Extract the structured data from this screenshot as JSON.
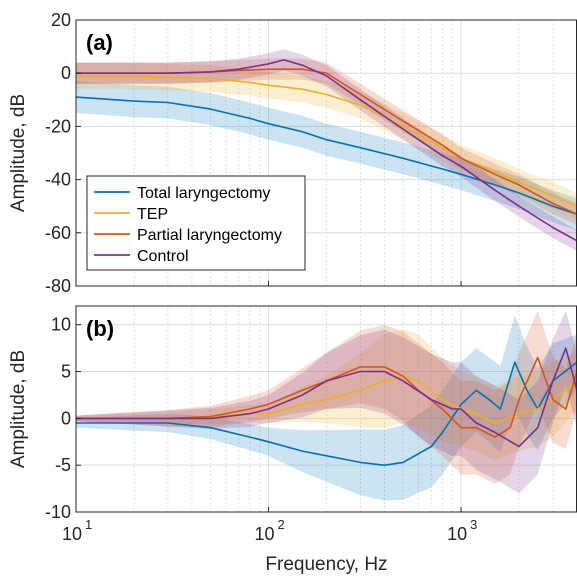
{
  "chart_data": [
    {
      "panel": "(a)",
      "type": "line",
      "xscale": "log",
      "xlim": [
        10,
        4000
      ],
      "ylim": [
        -80,
        20
      ],
      "yticks": [
        20,
        0,
        -20,
        -40,
        -60,
        -80
      ],
      "ylabel": "Amplitude, dB",
      "grid": true,
      "legend": {
        "placement": "bottom-left",
        "entries": [
          "Total laryngectomy",
          "TEP",
          "Partial laryngectomy",
          "Control"
        ]
      },
      "series": [
        {
          "name": "Total laryngectomy",
          "color": "#0072BD",
          "points": [
            [
              10,
              -9
            ],
            [
              20,
              -10.5
            ],
            [
              30,
              -11
            ],
            [
              50,
              -13.5
            ],
            [
              80,
              -17
            ],
            [
              100,
              -19
            ],
            [
              150,
              -22
            ],
            [
              200,
              -25
            ],
            [
              300,
              -28
            ],
            [
              500,
              -32
            ],
            [
              800,
              -36
            ],
            [
              1000,
              -38
            ],
            [
              1500,
              -42
            ],
            [
              2000,
              -45
            ],
            [
              3000,
              -50
            ],
            [
              4000,
              -53
            ]
          ],
          "band": [
            6,
            6
          ]
        },
        {
          "name": "TEP",
          "color": "#EDB120",
          "points": [
            [
              10,
              -1
            ],
            [
              20,
              -1
            ],
            [
              30,
              -1.5
            ],
            [
              50,
              -2
            ],
            [
              80,
              -3.5
            ],
            [
              100,
              -4.5
            ],
            [
              150,
              -6
            ],
            [
              200,
              -8
            ],
            [
              300,
              -12
            ],
            [
              500,
              -20
            ],
            [
              800,
              -28
            ],
            [
              1000,
              -32
            ],
            [
              1500,
              -37
            ],
            [
              2000,
              -41
            ],
            [
              3000,
              -46
            ],
            [
              4000,
              -50
            ]
          ],
          "band": [
            5,
            5
          ]
        },
        {
          "name": "Partial laryngectomy",
          "color": "#D95319",
          "points": [
            [
              10,
              0
            ],
            [
              30,
              0
            ],
            [
              50,
              0.5
            ],
            [
              70,
              1
            ],
            [
              100,
              1.5
            ],
            [
              150,
              1.5
            ],
            [
              200,
              0
            ],
            [
              300,
              -8
            ],
            [
              500,
              -18
            ],
            [
              800,
              -27
            ],
            [
              1000,
              -32
            ],
            [
              1500,
              -38
            ],
            [
              2000,
              -42
            ],
            [
              3000,
              -49
            ],
            [
              4000,
              -53
            ]
          ],
          "band": [
            4,
            4
          ]
        },
        {
          "name": "Control",
          "color": "#7E2F8E",
          "points": [
            [
              10,
              0
            ],
            [
              30,
              0
            ],
            [
              50,
              0.5
            ],
            [
              70,
              1.5
            ],
            [
              100,
              3.5
            ],
            [
              120,
              5
            ],
            [
              150,
              3
            ],
            [
              200,
              -1
            ],
            [
              300,
              -10
            ],
            [
              500,
              -21
            ],
            [
              800,
              -31
            ],
            [
              1000,
              -35
            ],
            [
              1500,
              -44
            ],
            [
              2000,
              -50
            ],
            [
              3000,
              -58
            ],
            [
              4000,
              -63
            ]
          ],
          "band": [
            4,
            4
          ]
        }
      ]
    },
    {
      "panel": "(b)",
      "type": "line",
      "xscale": "log",
      "xlim": [
        10,
        4000
      ],
      "ylim": [
        -10,
        12
      ],
      "yticks": [
        10,
        5,
        0,
        -5,
        -10
      ],
      "xticks": [
        "10",
        "10",
        "10"
      ],
      "xtick_exponents": [
        "1",
        "2",
        "3"
      ],
      "xtick_values": [
        10,
        100,
        1000
      ],
      "xlabel": "Frequency, Hz",
      "ylabel": "Amplitude, dB",
      "grid": true,
      "series": [
        {
          "name": "Total laryngectomy",
          "color": "#0072BD",
          "points": [
            [
              10,
              -0.5
            ],
            [
              30,
              -0.5
            ],
            [
              50,
              -1
            ],
            [
              80,
              -2
            ],
            [
              100,
              -2.5
            ],
            [
              150,
              -3.5
            ],
            [
              200,
              -4
            ],
            [
              300,
              -4.7
            ],
            [
              400,
              -5
            ],
            [
              500,
              -4.7
            ],
            [
              700,
              -3
            ],
            [
              800,
              -1.5
            ],
            [
              1000,
              1.5
            ],
            [
              1200,
              3
            ],
            [
              1400,
              2
            ],
            [
              1600,
              1
            ],
            [
              1900,
              6
            ],
            [
              2200,
              3
            ],
            [
              2500,
              1
            ],
            [
              3000,
              4
            ],
            [
              4000,
              6
            ]
          ],
          "band": [
            [
              10,
              0.5,
              0.5
            ],
            [
              100,
              1.5,
              1.5
            ],
            [
              300,
              3.5,
              3.5
            ],
            [
              500,
              4,
              4
            ],
            [
              800,
              4.5,
              4.5
            ],
            [
              1000,
              4.5,
              4.5
            ],
            [
              1500,
              4.5,
              4.5
            ],
            [
              1900,
              5,
              5
            ],
            [
              3000,
              4,
              4
            ],
            [
              4000,
              3,
              3
            ]
          ]
        },
        {
          "name": "TEP",
          "color": "#EDB120",
          "points": [
            [
              10,
              0
            ],
            [
              30,
              0
            ],
            [
              50,
              0.2
            ],
            [
              80,
              0.5
            ],
            [
              100,
              0.5
            ],
            [
              150,
              1.5
            ],
            [
              200,
              2
            ],
            [
              300,
              3
            ],
            [
              400,
              4
            ],
            [
              500,
              4.5
            ],
            [
              600,
              4
            ],
            [
              800,
              2
            ],
            [
              1000,
              1
            ],
            [
              1200,
              0.5
            ],
            [
              1500,
              -0.5
            ],
            [
              2000,
              0.5
            ],
            [
              2500,
              1
            ],
            [
              3000,
              2
            ],
            [
              4000,
              4
            ]
          ],
          "band": [
            [
              10,
              0.3,
              0.3
            ],
            [
              100,
              1,
              1
            ],
            [
              200,
              2.5,
              2.5
            ],
            [
              400,
              5,
              5
            ],
            [
              600,
              5,
              5
            ],
            [
              1000,
              4,
              4
            ],
            [
              2000,
              4,
              4
            ],
            [
              3000,
              4,
              4
            ],
            [
              4000,
              3,
              3
            ]
          ]
        },
        {
          "name": "Partial laryngectomy",
          "color": "#D95319",
          "points": [
            [
              10,
              0
            ],
            [
              30,
              0
            ],
            [
              50,
              0.2
            ],
            [
              80,
              1
            ],
            [
              100,
              1.5
            ],
            [
              150,
              3
            ],
            [
              200,
              4
            ],
            [
              300,
              5.5
            ],
            [
              400,
              5.5
            ],
            [
              500,
              4.5
            ],
            [
              600,
              3
            ],
            [
              800,
              1
            ],
            [
              1000,
              -1
            ],
            [
              1200,
              -1
            ],
            [
              1500,
              -2
            ],
            [
              1800,
              -1
            ],
            [
              2000,
              2
            ],
            [
              2500,
              6.5
            ],
            [
              3000,
              2
            ],
            [
              3500,
              1
            ],
            [
              4000,
              5
            ]
          ],
          "band": [
            [
              10,
              0.3,
              0.3
            ],
            [
              100,
              1.5,
              1.5
            ],
            [
              200,
              3,
              3
            ],
            [
              400,
              4.5,
              4.5
            ],
            [
              600,
              5,
              5
            ],
            [
              1000,
              5,
              5
            ],
            [
              2000,
              5,
              5
            ],
            [
              2500,
              5,
              5
            ],
            [
              4000,
              4,
              4
            ]
          ]
        },
        {
          "name": "Control",
          "color": "#7E2F8E",
          "points": [
            [
              10,
              0
            ],
            [
              30,
              0
            ],
            [
              50,
              0
            ],
            [
              80,
              0.5
            ],
            [
              100,
              1
            ],
            [
              150,
              2.5
            ],
            [
              200,
              4
            ],
            [
              300,
              5
            ],
            [
              400,
              5
            ],
            [
              500,
              4
            ],
            [
              700,
              2
            ],
            [
              900,
              1
            ],
            [
              1000,
              1
            ],
            [
              1200,
              -0.5
            ],
            [
              1500,
              -1.5
            ],
            [
              2000,
              -3
            ],
            [
              2500,
              -1
            ],
            [
              3000,
              4
            ],
            [
              3500,
              7.5
            ],
            [
              4000,
              3
            ]
          ],
          "band": [
            [
              10,
              0.3,
              0.3
            ],
            [
              100,
              1.5,
              1.5
            ],
            [
              200,
              3,
              3
            ],
            [
              400,
              4.5,
              4.5
            ],
            [
              800,
              5,
              5
            ],
            [
              1500,
              5,
              5
            ],
            [
              2500,
              5,
              5
            ],
            [
              3500,
              4,
              4
            ],
            [
              4000,
              4,
              4
            ]
          ]
        }
      ]
    }
  ]
}
